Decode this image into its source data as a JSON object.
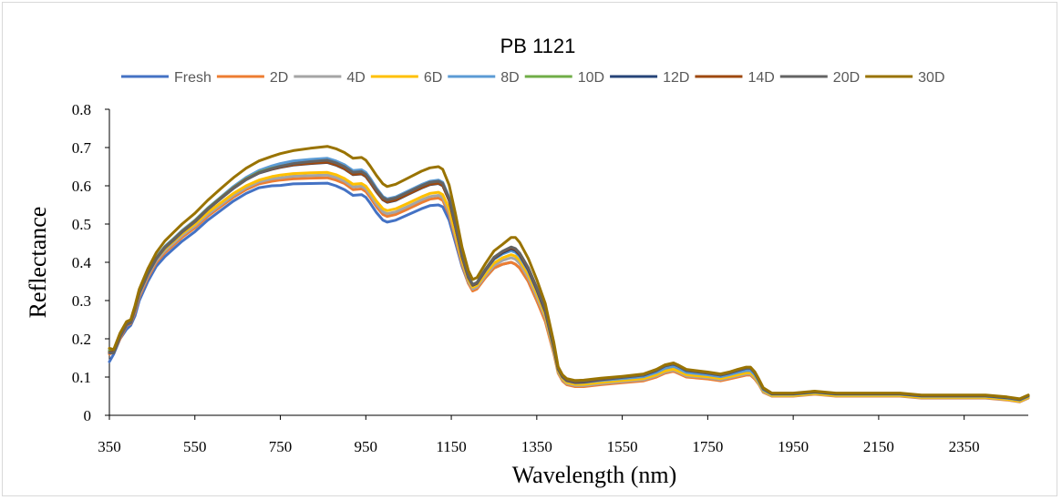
{
  "chart_data": {
    "type": "line",
    "title": "PB 1121",
    "xlabel": "Wavelength (nm)",
    "ylabel": "Reflectance",
    "xlim": [
      350,
      2500
    ],
    "ylim": [
      0,
      0.8
    ],
    "x_ticks": [
      "350",
      "550",
      "750",
      "950",
      "1150",
      "1350",
      "1550",
      "1750",
      "1950",
      "2150",
      "2350"
    ],
    "y_ticks": [
      "0",
      "0.1",
      "0.2",
      "0.3",
      "0.4",
      "0.5",
      "0.6",
      "0.7",
      "0.8"
    ],
    "grid": false,
    "legend_position": "top",
    "x": [
      350,
      360,
      375,
      390,
      400,
      410,
      420,
      440,
      460,
      480,
      500,
      520,
      550,
      580,
      610,
      640,
      670,
      700,
      730,
      750,
      780,
      820,
      860,
      880,
      900,
      920,
      940,
      950,
      960,
      975,
      990,
      1000,
      1020,
      1050,
      1080,
      1100,
      1120,
      1130,
      1145,
      1160,
      1175,
      1190,
      1200,
      1210,
      1230,
      1250,
      1270,
      1290,
      1300,
      1310,
      1330,
      1350,
      1370,
      1390,
      1400,
      1410,
      1420,
      1440,
      1460,
      1500,
      1550,
      1600,
      1630,
      1650,
      1670,
      1680,
      1700,
      1750,
      1780,
      1800,
      1820,
      1840,
      1850,
      1860,
      1870,
      1880,
      1900,
      1950,
      2000,
      2050,
      2100,
      2150,
      2200,
      2250,
      2300,
      2350,
      2400,
      2450,
      2480,
      2500
    ],
    "series": [
      {
        "name": "Fresh",
        "color": "#4472c4",
        "values": [
          0.14,
          0.16,
          0.2,
          0.225,
          0.235,
          0.26,
          0.3,
          0.35,
          0.39,
          0.415,
          0.435,
          0.455,
          0.48,
          0.51,
          0.535,
          0.56,
          0.58,
          0.595,
          0.6,
          0.601,
          0.605,
          0.606,
          0.607,
          0.6,
          0.59,
          0.575,
          0.577,
          0.57,
          0.555,
          0.53,
          0.51,
          0.505,
          0.51,
          0.525,
          0.54,
          0.548,
          0.55,
          0.545,
          0.51,
          0.45,
          0.39,
          0.345,
          0.33,
          0.335,
          0.36,
          0.385,
          0.395,
          0.4,
          0.395,
          0.385,
          0.35,
          0.3,
          0.25,
          0.17,
          0.12,
          0.1,
          0.09,
          0.085,
          0.085,
          0.09,
          0.095,
          0.1,
          0.11,
          0.12,
          0.125,
          0.12,
          0.11,
          0.105,
          0.1,
          0.105,
          0.11,
          0.12,
          0.12,
          0.11,
          0.09,
          0.07,
          0.055,
          0.055,
          0.06,
          0.055,
          0.055,
          0.055,
          0.055,
          0.05,
          0.05,
          0.05,
          0.05,
          0.045,
          0.04,
          0.05
        ]
      },
      {
        "name": "2D",
        "color": "#ed7d31",
        "values": [
          0.16,
          0.165,
          0.2,
          0.235,
          0.24,
          0.27,
          0.31,
          0.36,
          0.4,
          0.425,
          0.445,
          0.465,
          0.49,
          0.52,
          0.545,
          0.57,
          0.59,
          0.605,
          0.612,
          0.615,
          0.618,
          0.62,
          0.621,
          0.615,
          0.606,
          0.59,
          0.592,
          0.585,
          0.57,
          0.545,
          0.525,
          0.52,
          0.525,
          0.54,
          0.556,
          0.565,
          0.568,
          0.562,
          0.525,
          0.46,
          0.395,
          0.345,
          0.325,
          0.33,
          0.36,
          0.385,
          0.395,
          0.4,
          0.395,
          0.385,
          0.35,
          0.3,
          0.245,
          0.16,
          0.11,
          0.09,
          0.08,
          0.075,
          0.075,
          0.08,
          0.085,
          0.09,
          0.1,
          0.11,
          0.115,
          0.11,
          0.1,
          0.095,
          0.09,
          0.095,
          0.1,
          0.105,
          0.105,
          0.095,
          0.08,
          0.06,
          0.05,
          0.05,
          0.055,
          0.05,
          0.05,
          0.05,
          0.05,
          0.045,
          0.045,
          0.045,
          0.045,
          0.04,
          0.035,
          0.045
        ]
      },
      {
        "name": "4D",
        "color": "#a5a5a5",
        "values": [
          0.17,
          0.165,
          0.205,
          0.238,
          0.243,
          0.275,
          0.315,
          0.365,
          0.405,
          0.43,
          0.45,
          0.47,
          0.495,
          0.525,
          0.55,
          0.575,
          0.595,
          0.61,
          0.618,
          0.621,
          0.625,
          0.627,
          0.628,
          0.622,
          0.612,
          0.597,
          0.599,
          0.592,
          0.577,
          0.552,
          0.532,
          0.527,
          0.532,
          0.547,
          0.563,
          0.572,
          0.575,
          0.569,
          0.532,
          0.467,
          0.4,
          0.35,
          0.33,
          0.335,
          0.365,
          0.392,
          0.405,
          0.412,
          0.408,
          0.397,
          0.36,
          0.31,
          0.255,
          0.165,
          0.113,
          0.093,
          0.083,
          0.078,
          0.078,
          0.083,
          0.088,
          0.093,
          0.103,
          0.113,
          0.118,
          0.113,
          0.103,
          0.098,
          0.093,
          0.098,
          0.103,
          0.108,
          0.108,
          0.098,
          0.082,
          0.062,
          0.051,
          0.051,
          0.056,
          0.051,
          0.051,
          0.051,
          0.051,
          0.046,
          0.046,
          0.046,
          0.046,
          0.041,
          0.036,
          0.046
        ]
      },
      {
        "name": "6D",
        "color": "#ffc000",
        "values": [
          0.175,
          0.17,
          0.21,
          0.24,
          0.245,
          0.28,
          0.32,
          0.37,
          0.41,
          0.435,
          0.455,
          0.475,
          0.5,
          0.53,
          0.555,
          0.58,
          0.6,
          0.615,
          0.624,
          0.628,
          0.632,
          0.634,
          0.635,
          0.629,
          0.619,
          0.604,
          0.606,
          0.599,
          0.584,
          0.56,
          0.54,
          0.535,
          0.54,
          0.555,
          0.571,
          0.58,
          0.583,
          0.577,
          0.54,
          0.474,
          0.405,
          0.355,
          0.335,
          0.34,
          0.37,
          0.398,
          0.412,
          0.42,
          0.416,
          0.405,
          0.368,
          0.318,
          0.262,
          0.17,
          0.116,
          0.096,
          0.086,
          0.081,
          0.081,
          0.086,
          0.091,
          0.096,
          0.106,
          0.116,
          0.121,
          0.116,
          0.106,
          0.101,
          0.096,
          0.101,
          0.106,
          0.111,
          0.111,
          0.101,
          0.084,
          0.064,
          0.052,
          0.052,
          0.057,
          0.052,
          0.052,
          0.052,
          0.052,
          0.047,
          0.047,
          0.047,
          0.047,
          0.042,
          0.037,
          0.047
        ]
      },
      {
        "name": "8D",
        "color": "#5b9bd5",
        "values": [
          0.17,
          0.17,
          0.212,
          0.243,
          0.248,
          0.283,
          0.325,
          0.375,
          0.415,
          0.442,
          0.462,
          0.483,
          0.51,
          0.542,
          0.57,
          0.598,
          0.622,
          0.64,
          0.652,
          0.658,
          0.665,
          0.669,
          0.672,
          0.665,
          0.655,
          0.64,
          0.642,
          0.635,
          0.62,
          0.594,
          0.572,
          0.566,
          0.571,
          0.587,
          0.603,
          0.612,
          0.615,
          0.609,
          0.57,
          0.498,
          0.42,
          0.362,
          0.34,
          0.345,
          0.378,
          0.408,
          0.422,
          0.43,
          0.426,
          0.415,
          0.378,
          0.327,
          0.27,
          0.175,
          0.12,
          0.1,
          0.09,
          0.085,
          0.086,
          0.091,
          0.096,
          0.101,
          0.112,
          0.123,
          0.128,
          0.123,
          0.112,
          0.106,
          0.101,
          0.106,
          0.112,
          0.117,
          0.117,
          0.106,
          0.088,
          0.067,
          0.055,
          0.055,
          0.06,
          0.055,
          0.055,
          0.055,
          0.055,
          0.05,
          0.05,
          0.05,
          0.05,
          0.045,
          0.04,
          0.05
        ]
      },
      {
        "name": "10D",
        "color": "#70ad47",
        "values": [
          0.168,
          0.168,
          0.208,
          0.24,
          0.245,
          0.28,
          0.322,
          0.372,
          0.412,
          0.44,
          0.46,
          0.481,
          0.508,
          0.54,
          0.568,
          0.595,
          0.618,
          0.636,
          0.646,
          0.651,
          0.657,
          0.661,
          0.664,
          0.657,
          0.647,
          0.632,
          0.634,
          0.627,
          0.612,
          0.587,
          0.566,
          0.56,
          0.565,
          0.581,
          0.597,
          0.606,
          0.609,
          0.603,
          0.565,
          0.494,
          0.418,
          0.362,
          0.342,
          0.347,
          0.382,
          0.413,
          0.428,
          0.438,
          0.434,
          0.422,
          0.384,
          0.332,
          0.274,
          0.178,
          0.122,
          0.102,
          0.092,
          0.087,
          0.088,
          0.094,
          0.1,
          0.106,
          0.118,
          0.13,
          0.135,
          0.13,
          0.118,
          0.111,
          0.106,
          0.111,
          0.118,
          0.124,
          0.124,
          0.112,
          0.092,
          0.07,
          0.057,
          0.057,
          0.062,
          0.057,
          0.057,
          0.057,
          0.057,
          0.052,
          0.052,
          0.052,
          0.052,
          0.047,
          0.042,
          0.052
        ]
      },
      {
        "name": "12D",
        "color": "#264478",
        "values": [
          0.165,
          0.165,
          0.206,
          0.238,
          0.243,
          0.278,
          0.32,
          0.37,
          0.41,
          0.438,
          0.458,
          0.479,
          0.506,
          0.538,
          0.566,
          0.593,
          0.616,
          0.633,
          0.643,
          0.648,
          0.654,
          0.658,
          0.661,
          0.654,
          0.644,
          0.629,
          0.631,
          0.624,
          0.609,
          0.584,
          0.563,
          0.557,
          0.562,
          0.578,
          0.594,
          0.603,
          0.606,
          0.6,
          0.562,
          0.491,
          0.415,
          0.36,
          0.34,
          0.345,
          0.38,
          0.41,
          0.425,
          0.435,
          0.431,
          0.419,
          0.381,
          0.329,
          0.271,
          0.176,
          0.121,
          0.101,
          0.091,
          0.086,
          0.087,
          0.093,
          0.099,
          0.105,
          0.117,
          0.129,
          0.134,
          0.129,
          0.117,
          0.11,
          0.105,
          0.11,
          0.117,
          0.123,
          0.123,
          0.111,
          0.091,
          0.069,
          0.056,
          0.056,
          0.061,
          0.056,
          0.056,
          0.056,
          0.056,
          0.051,
          0.051,
          0.051,
          0.051,
          0.046,
          0.041,
          0.051
        ]
      },
      {
        "name": "14D",
        "color": "#9e480e",
        "values": [
          0.165,
          0.165,
          0.206,
          0.238,
          0.243,
          0.279,
          0.321,
          0.371,
          0.411,
          0.439,
          0.459,
          0.48,
          0.507,
          0.539,
          0.567,
          0.594,
          0.617,
          0.634,
          0.644,
          0.649,
          0.655,
          0.659,
          0.662,
          0.655,
          0.645,
          0.63,
          0.632,
          0.625,
          0.61,
          0.585,
          0.564,
          0.558,
          0.563,
          0.579,
          0.595,
          0.604,
          0.607,
          0.601,
          0.563,
          0.492,
          0.416,
          0.361,
          0.341,
          0.346,
          0.381,
          0.412,
          0.428,
          0.438,
          0.434,
          0.422,
          0.384,
          0.332,
          0.274,
          0.178,
          0.122,
          0.102,
          0.092,
          0.087,
          0.088,
          0.094,
          0.1,
          0.106,
          0.118,
          0.13,
          0.135,
          0.13,
          0.118,
          0.111,
          0.106,
          0.111,
          0.118,
          0.124,
          0.124,
          0.112,
          0.092,
          0.07,
          0.057,
          0.057,
          0.062,
          0.057,
          0.057,
          0.057,
          0.057,
          0.052,
          0.052,
          0.052,
          0.052,
          0.047,
          0.042,
          0.052
        ]
      },
      {
        "name": "20D",
        "color": "#636363",
        "values": [
          0.163,
          0.163,
          0.205,
          0.237,
          0.242,
          0.278,
          0.32,
          0.37,
          0.41,
          0.438,
          0.458,
          0.479,
          0.506,
          0.538,
          0.566,
          0.593,
          0.616,
          0.634,
          0.645,
          0.651,
          0.658,
          0.663,
          0.667,
          0.66,
          0.65,
          0.635,
          0.637,
          0.63,
          0.615,
          0.59,
          0.569,
          0.563,
          0.568,
          0.584,
          0.6,
          0.609,
          0.612,
          0.606,
          0.567,
          0.495,
          0.418,
          0.362,
          0.342,
          0.347,
          0.382,
          0.413,
          0.429,
          0.44,
          0.436,
          0.424,
          0.386,
          0.334,
          0.276,
          0.18,
          0.123,
          0.103,
          0.093,
          0.088,
          0.089,
          0.095,
          0.1,
          0.106,
          0.118,
          0.13,
          0.135,
          0.13,
          0.118,
          0.111,
          0.106,
          0.111,
          0.118,
          0.124,
          0.124,
          0.112,
          0.092,
          0.07,
          0.057,
          0.057,
          0.062,
          0.057,
          0.057,
          0.057,
          0.057,
          0.052,
          0.052,
          0.052,
          0.052,
          0.047,
          0.042,
          0.052
        ]
      },
      {
        "name": "30D",
        "color": "#997300",
        "values": [
          0.175,
          0.172,
          0.215,
          0.245,
          0.25,
          0.287,
          0.33,
          0.383,
          0.426,
          0.456,
          0.478,
          0.5,
          0.528,
          0.562,
          0.592,
          0.621,
          0.646,
          0.665,
          0.677,
          0.684,
          0.692,
          0.698,
          0.703,
          0.697,
          0.687,
          0.672,
          0.674,
          0.667,
          0.652,
          0.627,
          0.605,
          0.598,
          0.604,
          0.621,
          0.638,
          0.647,
          0.65,
          0.643,
          0.602,
          0.525,
          0.44,
          0.378,
          0.355,
          0.36,
          0.397,
          0.43,
          0.447,
          0.465,
          0.465,
          0.452,
          0.41,
          0.355,
          0.292,
          0.19,
          0.127,
          0.106,
          0.096,
          0.091,
          0.092,
          0.097,
          0.102,
          0.108,
          0.12,
          0.132,
          0.137,
          0.132,
          0.12,
          0.113,
          0.108,
          0.113,
          0.12,
          0.126,
          0.126,
          0.114,
          0.094,
          0.072,
          0.058,
          0.058,
          0.063,
          0.058,
          0.058,
          0.058,
          0.058,
          0.053,
          0.053,
          0.053,
          0.053,
          0.048,
          0.043,
          0.053
        ]
      }
    ]
  }
}
